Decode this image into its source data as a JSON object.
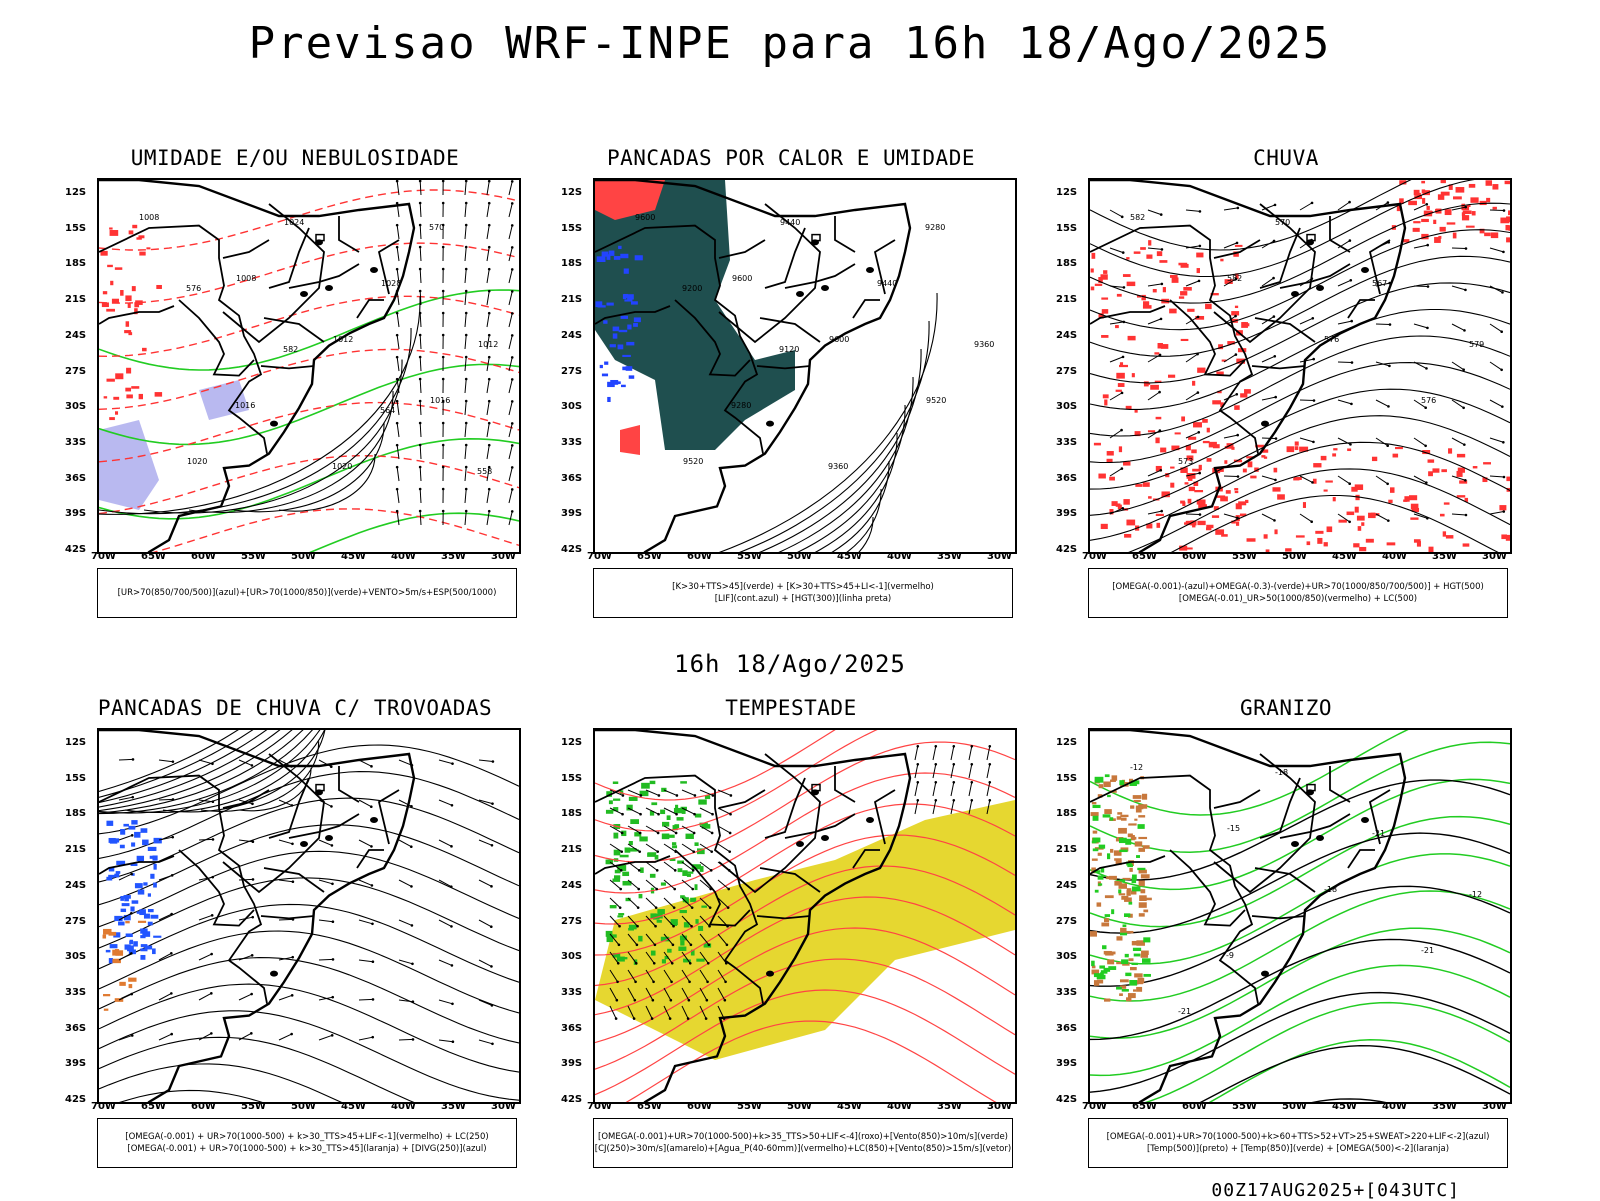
{
  "title": "Previsao WRF-INPE  para 16h 18/Ago/2025",
  "subtitle": "16h 18/Ago/2025",
  "footer": "00Z17AUG2025+[043UTC]",
  "axes": {
    "lat_labels": [
      "12S",
      "15S",
      "18S",
      "21S",
      "24S",
      "27S",
      "30S",
      "33S",
      "36S",
      "39S",
      "42S"
    ],
    "lon_labels": [
      "70W",
      "65W",
      "60W",
      "55W",
      "50W",
      "45W",
      "40W",
      "35W",
      "30W"
    ]
  },
  "panels": [
    {
      "title": "UMIDADE E/OU NEBULOSIDADE",
      "legend": [
        "[UR>70(850/700/500)](azul)+[UR>70(1000/850)](verde)+VENTO>5m/s+ESP(500/1000)"
      ],
      "contour_labels": [
        "1008",
        "1008",
        "1012",
        "1016",
        "1020",
        "1024",
        "1028",
        "1012",
        "1016",
        "1020",
        "570",
        "576",
        "582",
        "564",
        "558"
      ],
      "colors": {
        "humid_mid": "#b9b9f0",
        "humid_low": "#22cc22",
        "thickness": "#ff3333",
        "pressure": "#000000"
      }
    },
    {
      "title": "PANCADAS POR CALOR E UMIDADE",
      "legend": [
        "[K>30+TTS>45](verde) + [K>30+TTS>45+LI<-1](vermelho)",
        "[LIF](cont.azul) + [HGT(300)](linha preta)"
      ],
      "contour_labels": [
        "9600",
        "9600",
        "9600",
        "9520",
        "9520",
        "9440",
        "9440",
        "9360",
        "9280",
        "9360",
        "9280",
        "9200",
        "9120"
      ],
      "colors": {
        "instab": "#1f4f4f",
        "instab_strong": "#ff4444",
        "lif": "#2244ff"
      }
    },
    {
      "title": "CHUVA",
      "legend": [
        "[OMEGA(-0.001)-(azul)+OMEGA(-0.3)-(verde)+UR>70(1000/850/700/500)] + HGT(500)",
        "[OMEGA(-0.01)_UR>50(1000/850)(vermelho) + LC(500)"
      ],
      "contour_labels": [
        "582",
        "582",
        "576",
        "576",
        "573",
        "570",
        "567",
        "579"
      ],
      "colors": {
        "rain": "#ff3333"
      }
    },
    {
      "title": "PANCADAS DE CHUVA C/ TROVOADAS",
      "legend": [
        "[OMEGA(-0.001) + UR>70(1000-500) + k>30_TTS>45+LIF<-1](vermelho) + LC(250)",
        "[OMEGA(-0.001) + UR>70(1000-500) + k>30_TTS>45](laranja) + [DIVG(250)](azul)"
      ],
      "colors": {
        "divg": "#2255ff",
        "orange": "#e07a30"
      }
    },
    {
      "title": "TEMPESTADE",
      "legend": [
        "[OMEGA(-0.001)+UR>70(1000-500)+k>35_TTS>50+LIF<-4](roxo)+[Vento(850)>10m/s](verde)",
        "[CJ(250)>30m/s](amarelo)+[Agua_P(40-60mm)](vermelho)+LC(850)+[Vento(850)>15m/s](vetor)"
      ],
      "colors": {
        "jet": "#e6d730",
        "wind": "#22bb22",
        "water": "#ff4444"
      }
    },
    {
      "title": "GRANIZO",
      "legend": [
        "[OMEGA(-0.001)+UR>70(1000-500)+k>60+TTS>52+VT>25+SWEAT>220+LIF<-2](azul)",
        "[Temp(500)](preto) + [Temp(850)](verde) + [OMEGA(500)<-2](laranja)"
      ],
      "contour_labels": [
        "-12",
        "-15",
        "-18",
        "-21",
        "-21",
        "-18",
        "-21",
        "-12",
        "-9"
      ],
      "colors": {
        "t850": "#22cc22",
        "t500": "#000000",
        "omega": "#c8783c"
      }
    }
  ]
}
